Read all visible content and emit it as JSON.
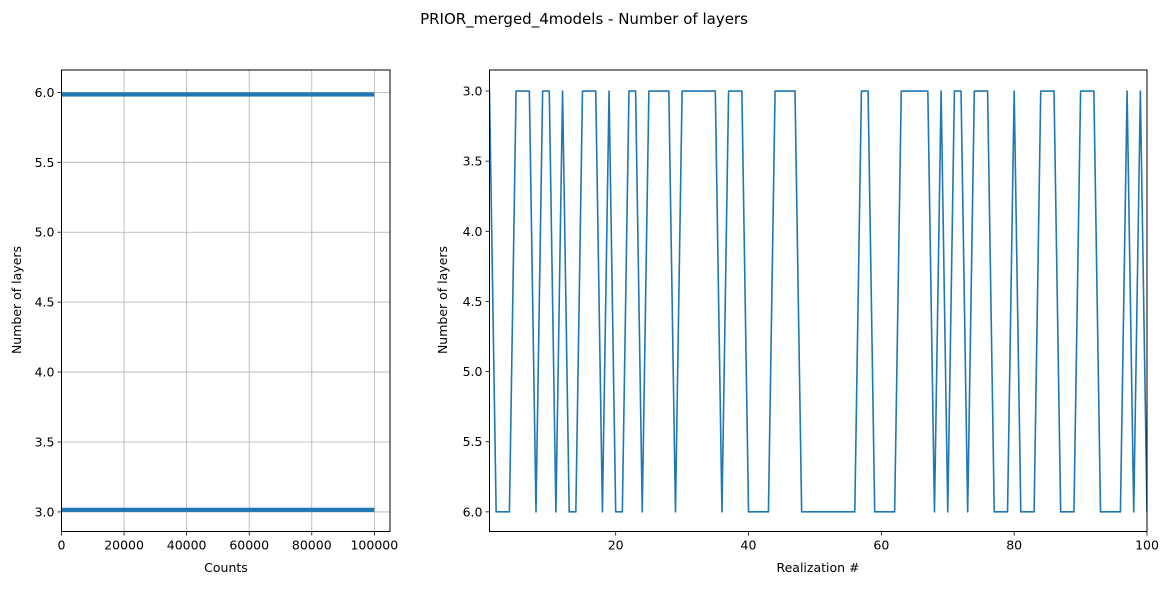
{
  "figure_title": "PRIOR_merged_4models - Number of layers",
  "colors": {
    "series": "#1f77b4",
    "grid": "#b0b0b0",
    "axis": "#000000"
  },
  "chart_data": [
    {
      "type": "bar",
      "orientation": "horizontal",
      "title": "",
      "xlabel": "Counts",
      "ylabel": "Number of layers",
      "xlim": [
        0,
        105000
      ],
      "ylim": [
        2.86,
        6.16
      ],
      "grid": true,
      "xticks": [
        0,
        20000,
        40000,
        60000,
        80000,
        100000
      ],
      "xtick_labels": [
        "0",
        "20000",
        "40000",
        "60000",
        "80000",
        "100000"
      ],
      "yticks": [
        3.0,
        3.5,
        4.0,
        4.5,
        5.0,
        5.5,
        6.0
      ],
      "ytick_labels": [
        "3.0",
        "3.5",
        "4.0",
        "4.5",
        "5.0",
        "5.5",
        "6.0"
      ],
      "bars": [
        {
          "y_from": 3.0,
          "y_to": 3.03,
          "value": 100000
        },
        {
          "y_from": 5.97,
          "y_to": 6.0,
          "value": 100000
        }
      ]
    },
    {
      "type": "line",
      "title": "",
      "xlabel": "Realization #",
      "ylabel": "Number of layers",
      "xlim": [
        1,
        100
      ],
      "ylim": [
        6.14,
        2.85
      ],
      "y_inverted": true,
      "grid": false,
      "xticks": [
        20,
        40,
        60,
        80,
        100
      ],
      "xtick_labels": [
        "20",
        "40",
        "60",
        "80",
        "100"
      ],
      "yticks": [
        3.0,
        3.5,
        4.0,
        4.5,
        5.0,
        5.5,
        6.0
      ],
      "ytick_labels": [
        "3.0",
        "3.5",
        "4.0",
        "4.5",
        "5.0",
        "5.5",
        "6.0"
      ],
      "x_start": 1,
      "values": [
        3,
        6,
        6,
        6,
        3,
        3,
        3,
        6,
        3,
        3,
        6,
        3,
        6,
        6,
        3,
        3,
        3,
        6,
        3,
        6,
        6,
        3,
        3,
        6,
        3,
        3,
        3,
        3,
        6,
        3,
        3,
        3,
        3,
        3,
        3,
        6,
        3,
        3,
        3,
        6,
        6,
        6,
        6,
        3,
        3,
        3,
        3,
        6,
        6,
        6,
        6,
        6,
        6,
        6,
        6,
        6,
        3,
        3,
        6,
        6,
        6,
        6,
        3,
        3,
        3,
        3,
        3,
        6,
        3,
        6,
        3,
        3,
        6,
        3,
        3,
        3,
        6,
        6,
        6,
        3,
        6,
        6,
        6,
        3,
        3,
        3,
        6,
        6,
        6,
        3,
        3,
        3,
        6,
        6,
        6,
        6,
        3,
        6,
        3,
        6
      ]
    }
  ]
}
